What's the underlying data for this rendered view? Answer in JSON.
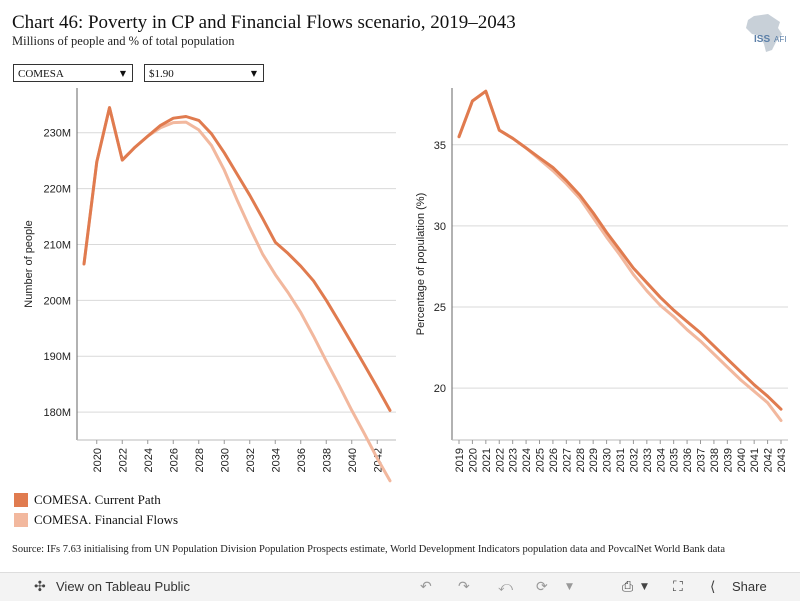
{
  "header": {
    "title": "Chart 46: Poverty in CP and Financial Flows scenario, 2019–2043",
    "subtitle": "Millions of people and % of total population",
    "logo_text": "ISS",
    "logo_text2": "AFI"
  },
  "filters": {
    "region": "COMESA",
    "poverty_line": "$1.90"
  },
  "colors": {
    "current_path": "#e07b4f",
    "financial_flows": "#f2b89e"
  },
  "legend": {
    "items": [
      {
        "label": "COMESA. Current Path",
        "color": "#e07b4f"
      },
      {
        "label": "COMESA. Financial Flows",
        "color": "#f2b89e"
      }
    ]
  },
  "source": "Source: IFs 7.63 initialising from UN Population Division Population Prospects estimate, World Development Indicators population data and PovcalNet World Bank data",
  "toolbar": {
    "view_label": "View on Tableau Public",
    "share_label": "Share"
  },
  "chart_data": [
    {
      "type": "line",
      "ylabel": "Number of people",
      "xlim": [
        2019,
        2043
      ],
      "ylim": [
        175,
        238
      ],
      "x_ticks": [
        2020,
        2022,
        2024,
        2026,
        2028,
        2030,
        2032,
        2034,
        2036,
        2038,
        2040,
        2042
      ],
      "y_ticks": [
        180,
        190,
        200,
        210,
        220,
        230
      ],
      "y_tick_labels": [
        "180M",
        "190M",
        "200M",
        "210M",
        "220M",
        "230M"
      ],
      "x": [
        2019,
        2020,
        2021,
        2022,
        2023,
        2024,
        2025,
        2026,
        2027,
        2028,
        2029,
        2030,
        2031,
        2032,
        2033,
        2034,
        2035,
        2036,
        2037,
        2038,
        2039,
        2040,
        2041,
        2042,
        2043
      ],
      "series": [
        {
          "name": "COMESA. Current Path",
          "values": [
            206.5,
            224.8,
            234.5,
            225.1,
            227.4,
            229.4,
            231.3,
            232.6,
            232.9,
            232.2,
            229.8,
            226.4,
            222.6,
            218.8,
            214.7,
            210.4,
            208.4,
            206.1,
            203.5,
            200.0,
            196.2,
            192.3,
            188.4,
            184.4,
            180.3
          ]
        },
        {
          "name": "COMESA. Financial Flows",
          "values": [
            206.5,
            224.8,
            234.5,
            225.1,
            227.4,
            229.4,
            230.9,
            231.8,
            231.9,
            230.5,
            227.7,
            223.3,
            218.0,
            213.0,
            208.3,
            204.6,
            201.4,
            197.8,
            193.6,
            189.1,
            184.8,
            180.3,
            176.1,
            171.7,
            167.7
          ]
        }
      ]
    },
    {
      "type": "line",
      "ylabel": "Percentage of population (%)",
      "xlim": [
        2019,
        2043
      ],
      "ylim": [
        16.8,
        38.5
      ],
      "x_ticks": [
        2019,
        2020,
        2021,
        2022,
        2023,
        2024,
        2025,
        2026,
        2027,
        2028,
        2029,
        2030,
        2031,
        2032,
        2033,
        2034,
        2035,
        2036,
        2037,
        2038,
        2039,
        2040,
        2041,
        2042,
        2043
      ],
      "y_ticks": [
        20,
        25,
        30,
        35
      ],
      "y_tick_labels": [
        "20",
        "25",
        "30",
        "35"
      ],
      "x": [
        2019,
        2020,
        2021,
        2022,
        2023,
        2024,
        2025,
        2026,
        2027,
        2028,
        2029,
        2030,
        2031,
        2032,
        2033,
        2034,
        2035,
        2036,
        2037,
        2038,
        2039,
        2040,
        2041,
        2042,
        2043
      ],
      "series": [
        {
          "name": "COMESA. Current Path",
          "values": [
            35.5,
            37.7,
            38.3,
            35.9,
            35.4,
            34.8,
            34.2,
            33.6,
            32.8,
            31.9,
            30.8,
            29.6,
            28.5,
            27.4,
            26.5,
            25.6,
            24.8,
            24.1,
            23.4,
            22.6,
            21.8,
            21.0,
            20.2,
            19.5,
            18.7
          ]
        },
        {
          "name": "COMESA. Financial Flows",
          "values": [
            35.5,
            37.7,
            38.3,
            35.9,
            35.4,
            34.8,
            34.1,
            33.4,
            32.6,
            31.7,
            30.5,
            29.3,
            28.2,
            27.0,
            26.0,
            25.1,
            24.4,
            23.6,
            22.9,
            22.1,
            21.3,
            20.5,
            19.8,
            19.1,
            18.0
          ]
        }
      ]
    }
  ]
}
